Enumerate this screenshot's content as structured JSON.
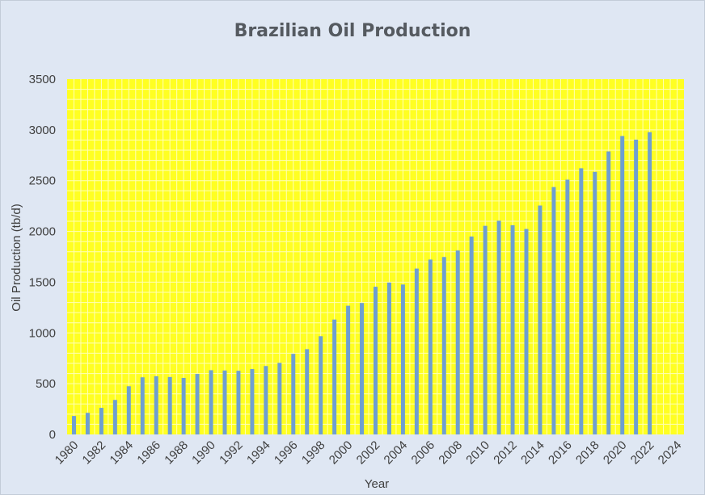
{
  "chart_data": {
    "type": "bar",
    "title": "Brazilian Oil Production",
    "xlabel": "Year",
    "ylabel": "Oil Production (tb/d)",
    "ylim": [
      0,
      3500
    ],
    "yticks": [
      0,
      500,
      1000,
      1500,
      2000,
      2500,
      3000,
      3500
    ],
    "xlim": [
      1980,
      2025
    ],
    "xticks": [
      1980,
      1982,
      1984,
      1986,
      1988,
      1990,
      1992,
      1994,
      1996,
      1998,
      2000,
      2002,
      2004,
      2006,
      2008,
      2010,
      2012,
      2014,
      2016,
      2018,
      2020,
      2022,
      2024
    ],
    "grid": true,
    "legend": "none",
    "colors": {
      "bar": "#6f9fd0",
      "plot_bg": "#ffff22",
      "grid": "#ffffb8",
      "page_bg": "#dfe7f3"
    },
    "series": [
      {
        "x": [
          1980,
          1981,
          1982,
          1983,
          1984,
          1985,
          1986,
          1987,
          1988,
          1989,
          1990,
          1991,
          1992,
          1993,
          1994,
          1995,
          1996,
          1997,
          1998,
          1999,
          2000,
          2001,
          2002,
          2003,
          2004,
          2005,
          2006,
          2007,
          2008,
          2009,
          2010,
          2011,
          2012,
          2013,
          2014,
          2015,
          2016,
          2017,
          2018,
          2019,
          2020,
          2021,
          2022
        ],
        "values": [
          182,
          213,
          262,
          340,
          475,
          563,
          573,
          566,
          557,
          596,
          633,
          630,
          627,
          644,
          674,
          705,
          794,
          840,
          968,
          1132,
          1268,
          1295,
          1455,
          1496,
          1477,
          1634,
          1723,
          1748,
          1812,
          1950,
          2055,
          2105,
          2061,
          2024,
          2255,
          2437,
          2510,
          2622,
          2587,
          2788,
          2940,
          2904,
          2978
        ]
      }
    ]
  }
}
